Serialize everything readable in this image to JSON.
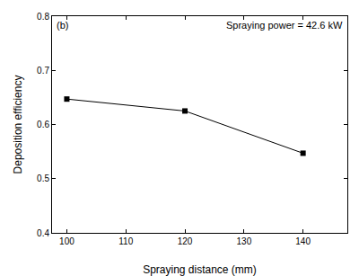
{
  "chart_data": {
    "type": "line",
    "x_label": "Spraying distance (mm)",
    "y_label": "Deposition efficiency",
    "annotations": [
      "(b)",
      "Spraying power = 42.6 kW"
    ],
    "x": [
      100,
      120,
      140
    ],
    "values": [
      0.647,
      0.625,
      0.547
    ],
    "color": "#000000",
    "marker": "square",
    "line_style": "solid",
    "xlim": [
      97.5,
      147.5
    ],
    "xticks": [
      100,
      110,
      120,
      130,
      140
    ],
    "ylim": [
      0.4,
      0.8
    ],
    "yticks": [
      0.4,
      0.5,
      0.6,
      0.7,
      0.8
    ],
    "grid": false
  }
}
